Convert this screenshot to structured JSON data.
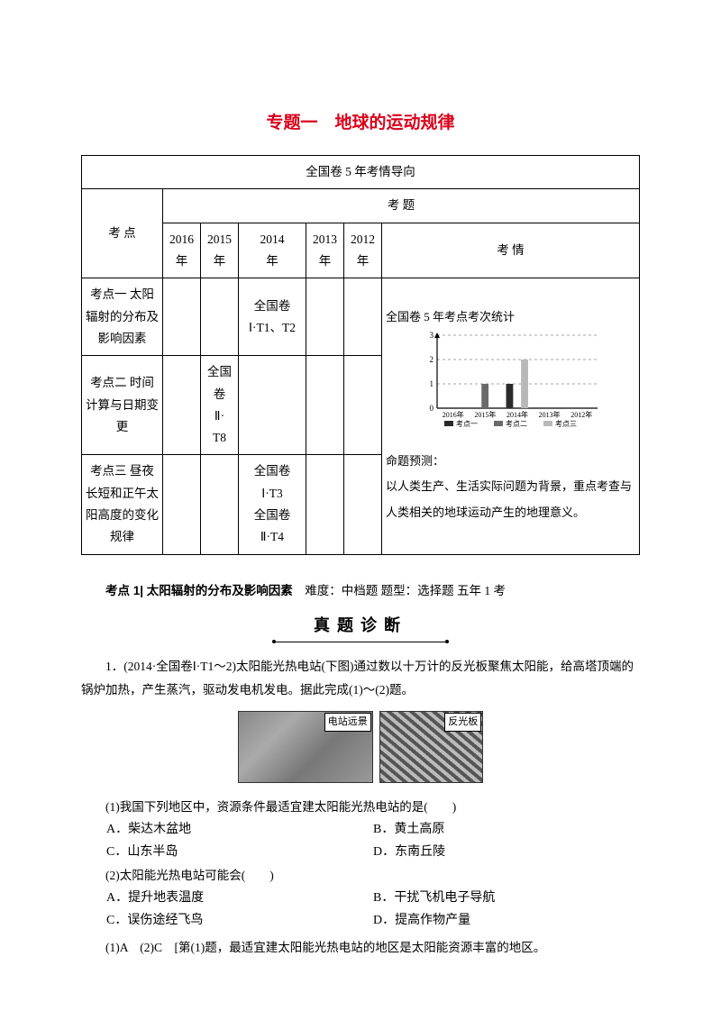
{
  "title": "专题一　地球的运动规律",
  "table": {
    "header_top": "全国卷 5 年考情导向",
    "col_kaodian": "考 点",
    "col_kaoti": "考 题",
    "years": [
      "2016\n年",
      "2015\n年",
      "2014\n年",
      "2013\n年",
      "2012\n年"
    ],
    "col_kaoqing": "考 情",
    "rows": [
      {
        "label": "考点一 太阳辐射的分布及影响因素",
        "cells": [
          "",
          "",
          "全国卷\nⅠ·T1、T2",
          "",
          ""
        ]
      },
      {
        "label": "考点二 时间计算与日期变更",
        "cells": [
          "",
          "全国\n卷\nⅡ·\nT8",
          "",
          "",
          ""
        ]
      },
      {
        "label": "考点三 昼夜长短和正午太阳高度的变化规律",
        "cells": [
          "",
          "",
          "全国卷\nⅠ·T3\n全国卷\nⅡ·T4",
          "",
          ""
        ]
      }
    ],
    "chart": {
      "title": "全国卷 5 年考点考次统计",
      "type": "bar",
      "categories": [
        "2016年",
        "2015年",
        "2014年",
        "2013年",
        "2012年"
      ],
      "series": [
        {
          "name": "考点一",
          "color": "#2a2a2a",
          "values": [
            0,
            0,
            1,
            0,
            0
          ]
        },
        {
          "name": "考点二",
          "color": "#6a6a6a",
          "values": [
            0,
            1,
            0,
            0,
            0
          ]
        },
        {
          "name": "考点三",
          "color": "#b8b8b8",
          "values": [
            0,
            0,
            2,
            0,
            0
          ]
        }
      ],
      "ylim": [
        0,
        3
      ],
      "ytick_step": 1,
      "grid_color": "#888",
      "grid_dash": "3,3",
      "axis_color": "#000",
      "label_fontsize": 9,
      "bar_group_width": 0.7,
      "background_color": "#ffffff"
    },
    "prediction_label": "命题预测：",
    "prediction_text": "以人类生产、生活实际问题为背景，重点考查与人类相关的地球运动产生的地理意义。"
  },
  "section": {
    "label_bold": "考点 1| 太阳辐射的分布及影响因素",
    "label_rest": "　难度：中档题 题型：选择题 五年 1 考",
    "zhenti": "真题诊断"
  },
  "question": {
    "stem_prefix": "1．(2014·全国卷Ⅰ·T1～2)太阳能光热电站(下图)通过数以十万计的反光板聚焦太阳能，给高塔顶端的锅炉加热，产生蒸汽，驱动发电机发电。据此完成(1)～(2)题。",
    "img1_label": "电站远景",
    "img2_label": "反光板",
    "q1_stem": "(1)我国下列地区中，资源条件最适宜建太阳能光热电站的是(　　)",
    "q1_opts": {
      "A": "A．柴达木盆地",
      "B": "B．黄土高原",
      "C": "C．山东半岛",
      "D": "D．东南丘陵"
    },
    "q2_stem": "(2)太阳能光热电站可能会(　　)",
    "q2_opts": {
      "A": "A．提升地表温度",
      "B": "B．干扰飞机电子导航",
      "C": "C．误伤途经飞鸟",
      "D": "D．提高作物产量"
    },
    "answer": "(1)A　(2)C　[第(1)题，最适宜建太阳能光热电站的地区是太阳能资源丰富的地区。"
  }
}
